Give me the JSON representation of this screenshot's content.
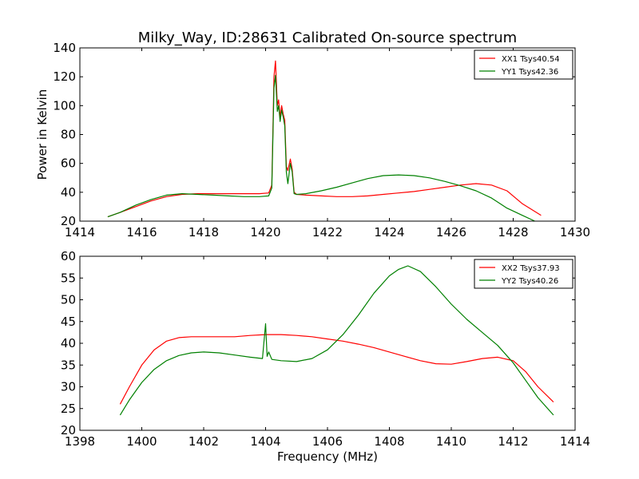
{
  "figure": {
    "title": "Milky_Way, ID:28631 Calibrated On-source spectrum"
  },
  "chart_data": [
    {
      "type": "line",
      "title": "Milky_Way, ID:28631 Calibrated On-source spectrum",
      "xlabel": "",
      "ylabel": "Power in Kelvin",
      "xlim": [
        1414,
        1430
      ],
      "ylim": [
        20,
        140
      ],
      "xticks": [
        1414,
        1416,
        1418,
        1420,
        1422,
        1424,
        1426,
        1428,
        1430
      ],
      "yticks": [
        20,
        40,
        60,
        80,
        100,
        120,
        140
      ],
      "grid": false,
      "legend": "top-right",
      "series": [
        {
          "name": "XX1 Tsys40.54",
          "color": "#ff0000",
          "x": [
            1414.9,
            1415.3,
            1415.8,
            1416.3,
            1416.8,
            1417.3,
            1417.8,
            1418.3,
            1418.8,
            1419.3,
            1419.8,
            1420.1,
            1420.2,
            1420.27,
            1420.32,
            1420.38,
            1420.42,
            1420.47,
            1420.52,
            1420.57,
            1420.62,
            1420.67,
            1420.72,
            1420.8,
            1420.86,
            1420.92,
            1421.0,
            1421.3,
            1421.8,
            1422.3,
            1422.8,
            1423.3,
            1423.8,
            1424.3,
            1424.8,
            1425.3,
            1425.8,
            1426.3,
            1426.8,
            1427.3,
            1427.8,
            1428.3,
            1428.9
          ],
          "y": [
            23,
            26,
            30,
            34,
            37,
            38.5,
            39,
            39,
            39,
            39,
            39,
            39.5,
            45,
            120,
            131,
            100,
            104,
            92,
            100,
            94,
            90,
            58,
            55,
            63,
            56,
            40,
            38.5,
            38,
            37.5,
            37,
            37,
            37.5,
            38.5,
            39.5,
            40.5,
            42,
            43.5,
            45,
            46,
            45,
            41,
            32,
            24
          ]
        },
        {
          "name": "YY1 Tsys42.36",
          "color": "#008000",
          "x": [
            1414.9,
            1415.3,
            1415.8,
            1416.3,
            1416.8,
            1417.3,
            1417.8,
            1418.3,
            1418.8,
            1419.3,
            1419.8,
            1420.1,
            1420.2,
            1420.27,
            1420.32,
            1420.38,
            1420.42,
            1420.47,
            1420.52,
            1420.57,
            1420.62,
            1420.67,
            1420.72,
            1420.8,
            1420.86,
            1420.92,
            1421.0,
            1421.3,
            1421.8,
            1422.3,
            1422.8,
            1423.3,
            1423.8,
            1424.3,
            1424.8,
            1425.3,
            1425.8,
            1426.3,
            1426.8,
            1427.3,
            1427.8,
            1428.3,
            1428.7
          ],
          "y": [
            23,
            26,
            31,
            35,
            38,
            39,
            38.5,
            38,
            37.5,
            37,
            37,
            37.5,
            43,
            112,
            121,
            96,
            100,
            89,
            97,
            92,
            86,
            54,
            46,
            60,
            54,
            39,
            38.5,
            39,
            41,
            43.5,
            46.5,
            49.5,
            51.5,
            52,
            51.5,
            50,
            47.5,
            44.5,
            41,
            36,
            29,
            24,
            20
          ]
        }
      ]
    },
    {
      "type": "line",
      "title": "",
      "xlabel": "Frequency (MHz)",
      "ylabel": "",
      "xlim": [
        1398,
        1414
      ],
      "ylim": [
        20,
        60
      ],
      "xticks": [
        1398,
        1400,
        1402,
        1404,
        1406,
        1408,
        1410,
        1412,
        1414
      ],
      "yticks": [
        20,
        25,
        30,
        35,
        40,
        45,
        50,
        55,
        60
      ],
      "grid": false,
      "legend": "top-right",
      "series": [
        {
          "name": "XX2 Tsys37.93",
          "color": "#ff0000",
          "x": [
            1399.3,
            1399.6,
            1400.0,
            1400.4,
            1400.8,
            1401.2,
            1401.6,
            1402.0,
            1402.5,
            1403.0,
            1403.5,
            1404.0,
            1404.5,
            1405.0,
            1405.5,
            1406.0,
            1406.5,
            1407.0,
            1407.5,
            1408.0,
            1408.5,
            1409.0,
            1409.5,
            1410.0,
            1410.5,
            1411.0,
            1411.5,
            1412.0,
            1412.4,
            1412.8,
            1413.3
          ],
          "y": [
            26,
            30,
            35,
            38.5,
            40.5,
            41.3,
            41.5,
            41.5,
            41.5,
            41.5,
            41.8,
            42,
            42,
            41.8,
            41.5,
            41,
            40.5,
            39.8,
            39,
            38,
            37,
            36,
            35.3,
            35.2,
            35.8,
            36.5,
            36.8,
            36,
            33.5,
            30,
            26.5
          ]
        },
        {
          "name": "YY2 Tsys40.26",
          "color": "#008000",
          "x": [
            1399.3,
            1399.6,
            1400.0,
            1400.4,
            1400.8,
            1401.2,
            1401.6,
            1402.0,
            1402.5,
            1403.0,
            1403.5,
            1403.9,
            1404.0,
            1404.05,
            1404.1,
            1404.2,
            1404.5,
            1405.0,
            1405.5,
            1406.0,
            1406.5,
            1407.0,
            1407.5,
            1408.0,
            1408.3,
            1408.6,
            1409.0,
            1409.5,
            1410.0,
            1410.5,
            1411.0,
            1411.5,
            1412.0,
            1412.4,
            1412.8,
            1413.3
          ],
          "y": [
            23.5,
            27,
            31,
            34,
            36,
            37.2,
            37.8,
            38,
            37.8,
            37.3,
            36.8,
            36.5,
            44.5,
            37,
            38,
            36.3,
            36,
            35.8,
            36.5,
            38.5,
            42,
            46.5,
            51.5,
            55.5,
            57,
            57.8,
            56.5,
            53,
            49,
            45.5,
            42.5,
            39.5,
            35.5,
            31.5,
            27.5,
            23.5
          ]
        }
      ]
    }
  ]
}
